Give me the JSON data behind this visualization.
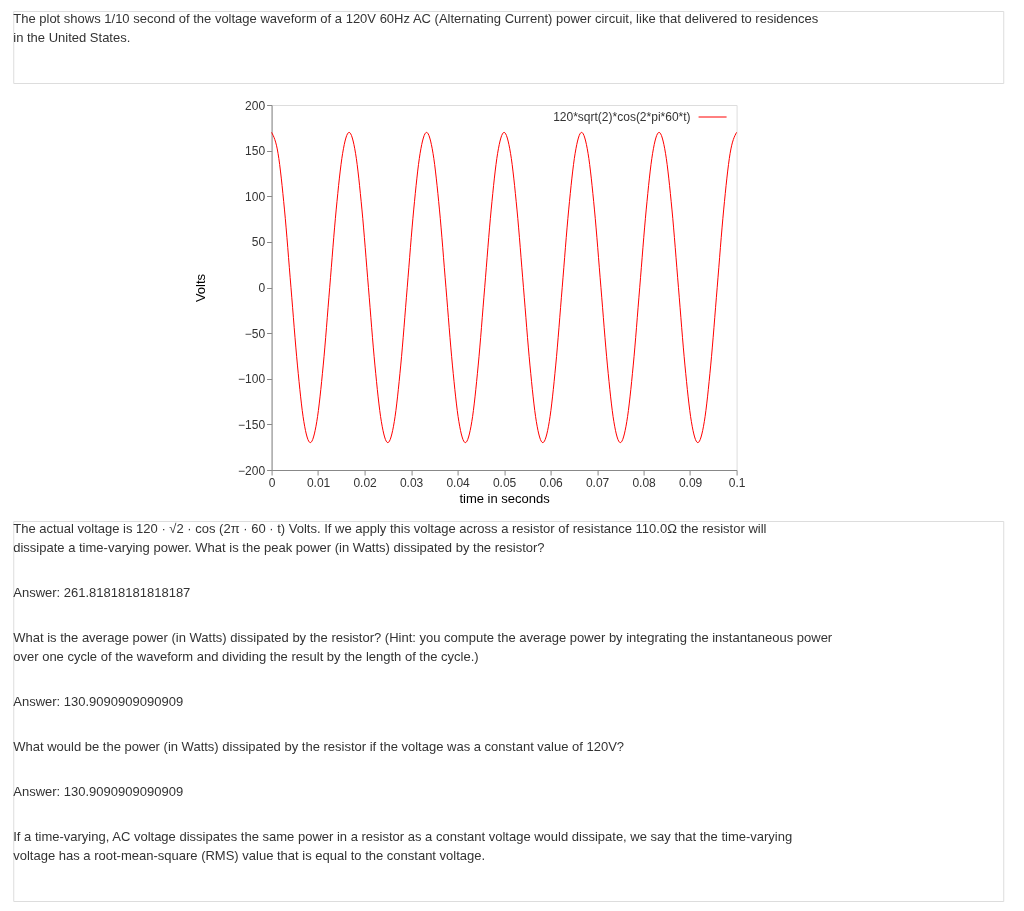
{
  "chart_data": {
    "type": "line",
    "title": "The plot shows 1/10 second of the voltage waveform of a 120V 60Hz AC (Alternating Current) power circuit, like that delivered to residences in the United States.",
    "xlabel": "time in seconds",
    "ylabel": "Volts",
    "x": [
      0,
      0.00139,
      0.00278,
      0.00417,
      0.00556,
      0.00694,
      0.00833,
      0.00972,
      0.01111,
      0.0125,
      0.01389,
      0.01528,
      0.01667,
      0.01806,
      0.01944,
      0.02083,
      0.02222,
      0.02361,
      0.025,
      0.02639,
      0.02778,
      0.02917,
      0.03056,
      0.03194,
      0.03333,
      0.03472,
      0.03611,
      0.0375,
      0.03889,
      0.04028,
      0.04167,
      0.04306,
      0.04444,
      0.04583,
      0.04722,
      0.04861,
      0.05,
      0.05139,
      0.05278,
      0.05417,
      0.05556,
      0.05694,
      0.05833,
      0.05972,
      0.06111,
      0.0625,
      0.06389,
      0.06528,
      0.06667,
      0.06806,
      0.06944,
      0.07083,
      0.07222,
      0.07361,
      0.075,
      0.07639,
      0.07778,
      0.07917,
      0.08056,
      0.08194,
      0.08333,
      0.08472,
      0.08611,
      0.0875,
      0.08889,
      0.09028,
      0.09167,
      0.09306,
      0.09444,
      0.09583,
      0.09722,
      0.09861,
      0.1
    ],
    "series": [
      {
        "name": "120*sqrt(2)*cos(2*pi*60*t)",
        "color": "#ff0000",
        "values": [
          170,
          147,
          85,
          0,
          -85,
          -147,
          -170,
          -147,
          -85,
          0,
          85,
          147,
          170,
          147,
          85,
          0,
          -85,
          -147,
          -170,
          -147,
          -85,
          0,
          85,
          147,
          170,
          147,
          85,
          0,
          -85,
          -147,
          -170,
          -147,
          -85,
          0,
          85,
          147,
          170,
          147,
          85,
          0,
          -85,
          -147,
          -170,
          -147,
          -85,
          0,
          85,
          147,
          170,
          147,
          85,
          0,
          -85,
          -147,
          -170,
          -147,
          -85,
          0,
          85,
          147,
          170,
          147,
          85,
          0,
          -85,
          -147,
          -170,
          -147,
          -85,
          0,
          85,
          147,
          170
        ]
      }
    ],
    "xlim": [
      0,
      0.1
    ],
    "xticks": [
      0,
      0.01,
      0.02,
      0.03,
      0.04,
      0.05,
      0.06,
      0.07,
      0.08,
      0.09,
      0.1
    ],
    "ylim": [
      -200,
      200
    ],
    "yticks": [
      -200,
      -150,
      -100,
      -50,
      0,
      50,
      100,
      150,
      200
    ],
    "grid": false,
    "legend": "top right",
    "line_style": "solid",
    "marker": "none",
    "annotations": [
      "The actual voltage is 120 · √2 · cos (2π · 60 · t) Volts. If we apply this voltage across a resistor of resistance 110.0Ω the resistor will dissipate a time-varying power. What is the peak power (in Watts) dissipated by the resistor?",
      "Answer: 261.81818181818187",
      "What is the average power (in Watts) dissipated by the resistor? (Hint: you compute the average power by integrating the instantaneous power over one cycle of the waveform and dividing the result by the length of the cycle.)",
      "Answer: 130.9090909090909",
      "What would be the power (in Watts) dissipated by the resistor if the voltage was a constant value of 120V?",
      "Answer: 130.9090909090909",
      "If a time-varying, AC voltage dissipates the same power in a resistor as a constant voltage would dissipate, we say that the time-varying voltage has a root-mean-square (RMS) value that is equal to the constant voltage."
    ]
  }
}
